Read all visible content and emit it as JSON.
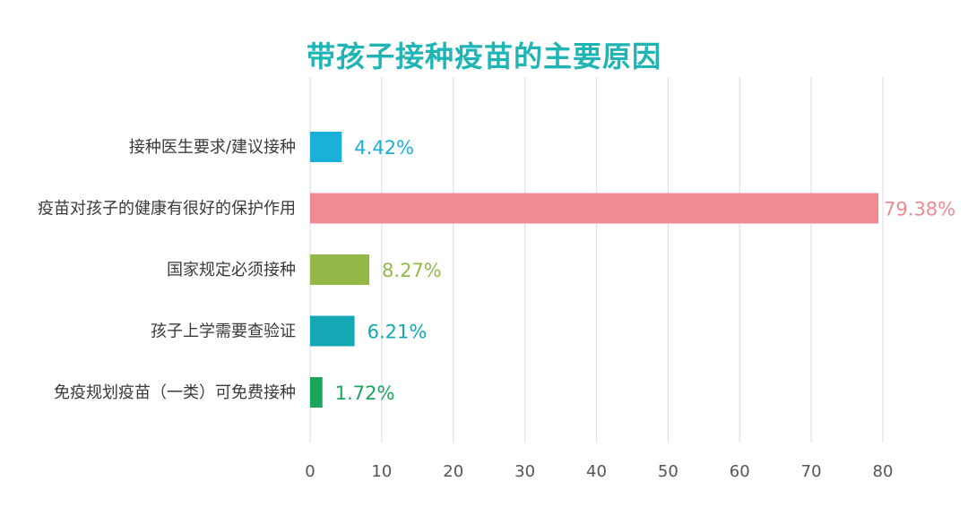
{
  "chart_data": {
    "type": "bar",
    "orientation": "horizontal",
    "title": "带孩子接种疫苗的主要原因",
    "title_color": "#1fb5b5",
    "categories": [
      "接种医生要求/建议接种",
      "疫苗对孩子的健康有很好的保护作用",
      "国家规定必须接种",
      "孩子上学需要查验证",
      "免疫规划疫苗（一类）可免费接种"
    ],
    "values": [
      4.42,
      79.38,
      8.27,
      6.21,
      1.72
    ],
    "value_labels": [
      "4.42%",
      "79.38%",
      "8.27%",
      "6.21%",
      "1.72%"
    ],
    "colors": [
      "#1ab0d8",
      "#f08b92",
      "#93b848",
      "#13a8b4",
      "#1aa65a"
    ],
    "xlim": [
      0,
      80
    ],
    "xticks": [
      0,
      10,
      20,
      30,
      40,
      50,
      60,
      70,
      80
    ],
    "xtick_labels": [
      "0",
      "10",
      "20",
      "30",
      "40",
      "50",
      "60",
      "70",
      "80"
    ],
    "grid": true,
    "legend": false,
    "xlabel": "",
    "ylabel": ""
  }
}
